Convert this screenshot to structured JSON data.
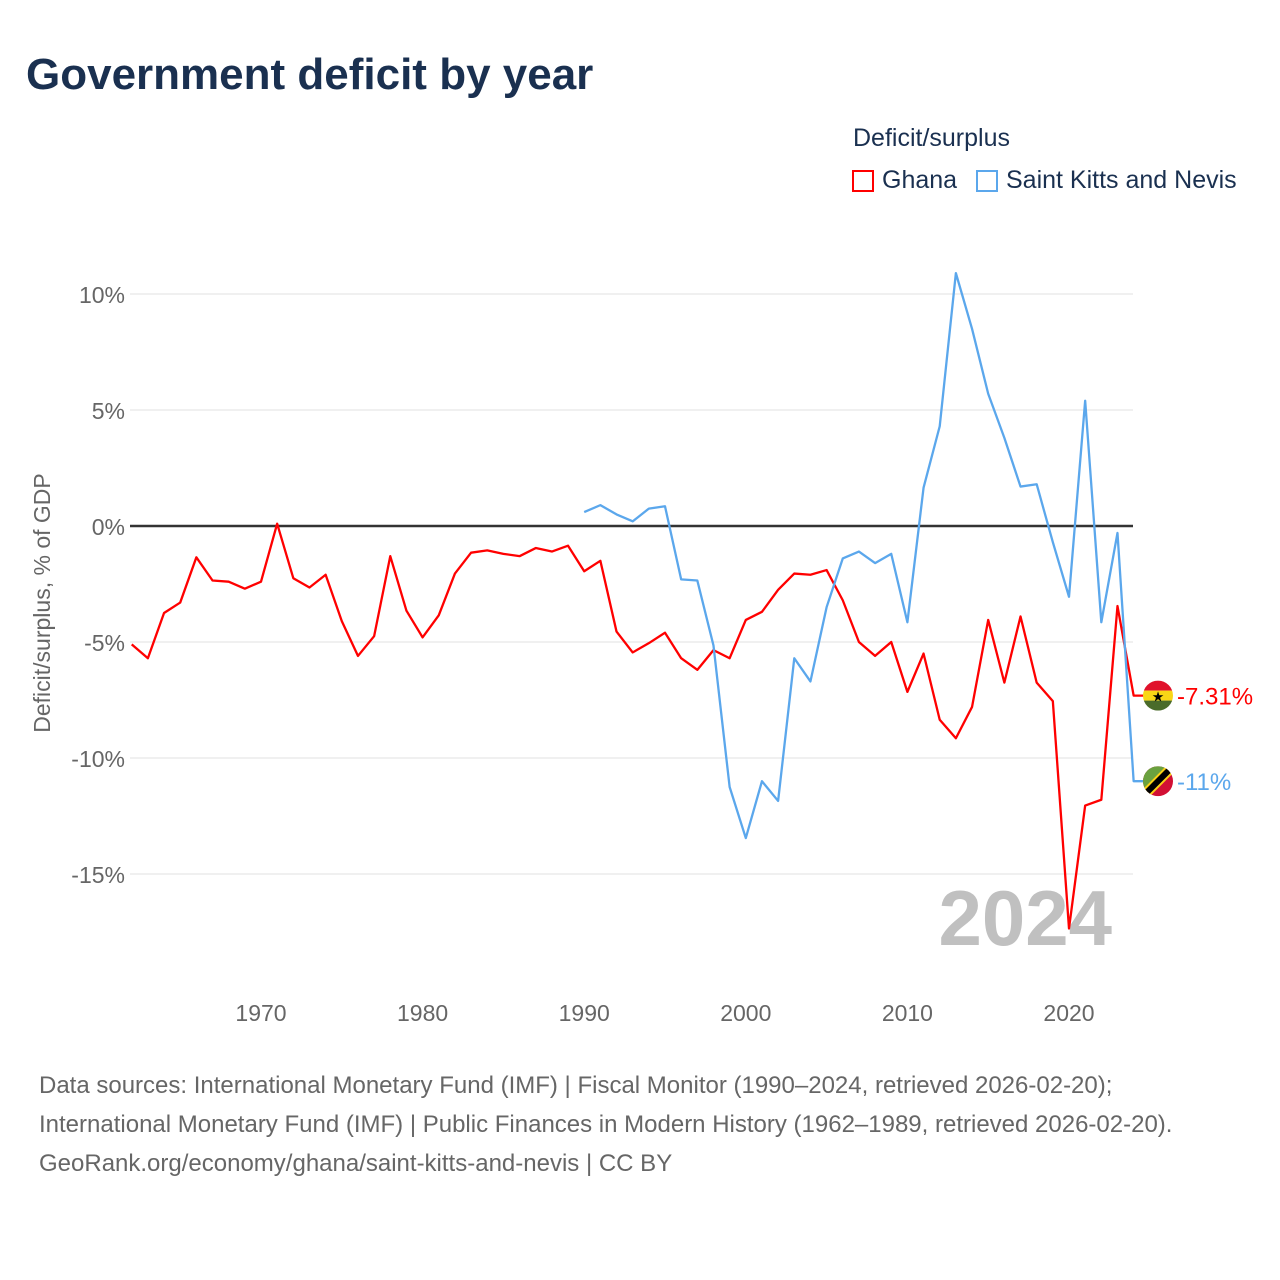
{
  "title": "Government deficit by year",
  "legend": {
    "title": "Deficit/surplus",
    "items": [
      {
        "label": "Ghana",
        "color": "#ff0000"
      },
      {
        "label": "Saint Kitts and Nevis",
        "color": "#5ba7ec"
      }
    ]
  },
  "chart_data": {
    "type": "line",
    "title": "Government deficit by year",
    "xlabel": "",
    "ylabel": "Deficit/surplus, % of GDP",
    "xlim": [
      1962,
      2024
    ],
    "ylim": [
      -18,
      12
    ],
    "yticks": [
      10,
      5,
      0,
      -5,
      -10,
      -15
    ],
    "ytick_labels": [
      "10%",
      "5%",
      "0%",
      "-5%",
      "-10%",
      "-15%"
    ],
    "xticks": [
      1970,
      1980,
      1990,
      2000,
      2010,
      2020
    ],
    "xtick_labels": [
      "1970",
      "1980",
      "1990",
      "2000",
      "2010",
      "2020"
    ],
    "grid": true,
    "year_watermark": "2024",
    "series": [
      {
        "name": "Ghana",
        "color": "#ff0000",
        "start_year": 1962,
        "end_label": "-7.31%",
        "values": [
          -5.1,
          -5.7,
          -3.75,
          -3.3,
          -1.35,
          -2.35,
          -2.4,
          -2.7,
          -2.4,
          0.1,
          -2.25,
          -2.65,
          -2.1,
          -4.1,
          -5.6,
          -4.75,
          -1.3,
          -3.65,
          -4.8,
          -3.85,
          -2.05,
          -1.15,
          -1.05,
          -1.2,
          -1.3,
          -0.95,
          -1.1,
          -0.85,
          -1.95,
          -1.5,
          -4.55,
          -5.45,
          -5.05,
          -4.6,
          -5.7,
          -6.2,
          -5.35,
          -5.7,
          -4.05,
          -3.7,
          -2.75,
          -2.05,
          -2.1,
          -1.9,
          -3.2,
          -5.0,
          -5.6,
          -5.0,
          -7.15,
          -5.5,
          -8.35,
          -9.15,
          -7.8,
          -4.05,
          -6.75,
          -3.9,
          -6.75,
          -7.55,
          -17.35,
          -12.05,
          -11.8,
          -3.45,
          -7.31
        ]
      },
      {
        "name": "Saint Kitts and Nevis",
        "color": "#5ba7ec",
        "start_year": 1990,
        "end_label": "-11%",
        "values": [
          0.6,
          0.9,
          0.5,
          0.2,
          0.75,
          0.85,
          -2.3,
          -2.35,
          -5.15,
          -11.25,
          -13.45,
          -11.0,
          -11.85,
          -5.7,
          -6.7,
          -3.5,
          -1.4,
          -1.1,
          -1.6,
          -1.2,
          -4.15,
          1.65,
          4.3,
          10.9,
          8.5,
          5.7,
          3.8,
          1.7,
          1.8,
          -0.7,
          -3.05,
          5.4,
          -4.15,
          -0.3,
          -11.0
        ]
      }
    ]
  },
  "footer": {
    "sources": "Data sources: International Monetary Fund (IMF) | Fiscal Monitor (1990–2024, retrieved 2026-02-20); International Monetary Fund (IMF) | Public Finances in Modern History (1962–1989, retrieved 2026-02-20).",
    "credit": "GeoRank.org/economy/ghana/saint-kitts-and-nevis | CC BY"
  }
}
